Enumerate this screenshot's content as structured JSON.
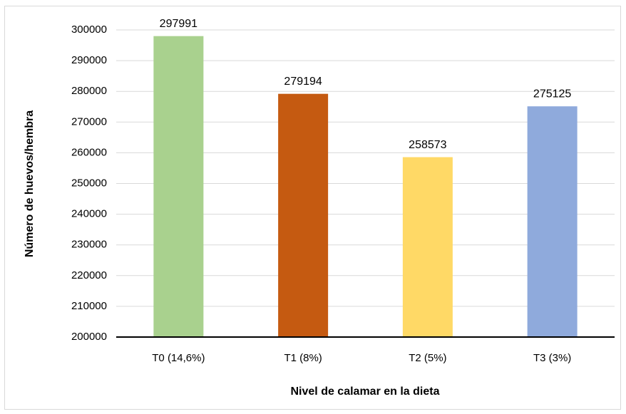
{
  "chart_data": {
    "type": "bar",
    "categories": [
      "T0 (14,6%)",
      "T1 (8%)",
      "T2 (5%)",
      "T3 (3%)"
    ],
    "values": [
      297991,
      279194,
      258573,
      275125
    ],
    "colors": [
      "#a9d18e",
      "#c55a11",
      "#ffd966",
      "#8faadc"
    ],
    "x_label": "Nivel de calamar en la dieta",
    "y_label": "Número de huevos/hembra",
    "ylim": [
      200000,
      300000
    ],
    "yticks": [
      200000,
      210000,
      220000,
      230000,
      240000,
      250000,
      260000,
      270000,
      280000,
      290000,
      300000
    ],
    "grid": true
  }
}
